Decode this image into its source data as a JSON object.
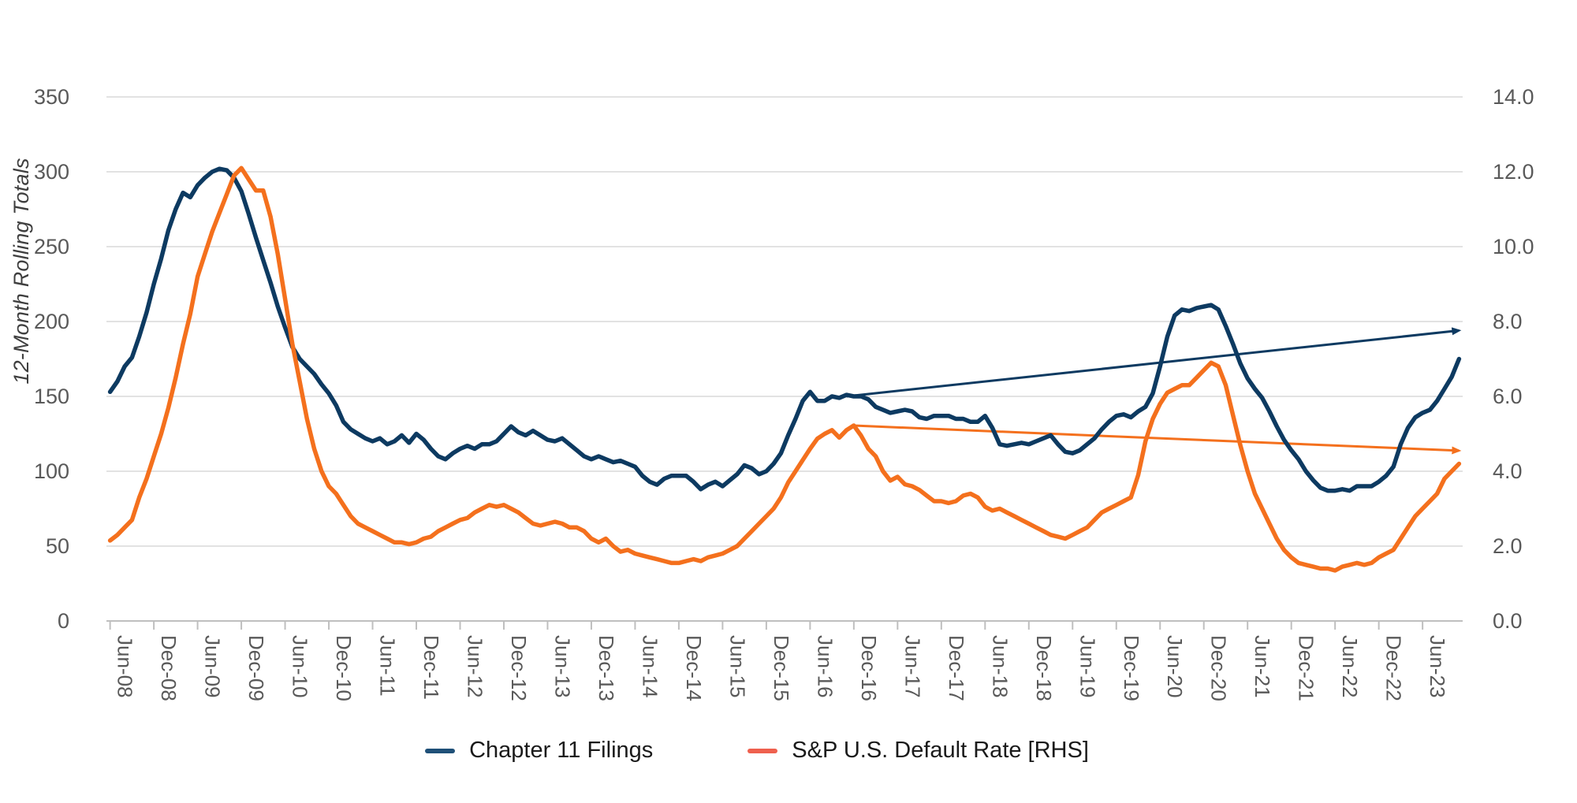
{
  "chart_data": {
    "type": "line",
    "title": "",
    "ylabel_left": "12-Month Rolling Totals",
    "left_axis": {
      "tick_labels": [
        "350",
        "300",
        "250",
        "200",
        "150",
        "100",
        "50",
        "0"
      ],
      "min": 0,
      "max": 350,
      "grid": true
    },
    "right_axis": {
      "tick_labels": [
        "14.0",
        "12.0",
        "10.0",
        "8.0",
        "6.0",
        "4.0",
        "2.0",
        "0.0"
      ],
      "min": 0,
      "max": 14,
      "grid": false
    },
    "x_tick_labels": [
      "Jun-08",
      "Dec-08",
      "Jun-09",
      "Dec-09",
      "Jun-10",
      "Dec-10",
      "Jun-11",
      "Dec-11",
      "Jun-12",
      "Dec-12",
      "Jun-13",
      "Dec-13",
      "Jun-14",
      "Dec-14",
      "Jun-15",
      "Dec-15",
      "Jun-16",
      "Dec-16",
      "Jun-17",
      "Dec-17",
      "Jun-18",
      "Dec-18",
      "Jun-19",
      "Dec-19",
      "Jun-20",
      "Dec-20",
      "Jun-21",
      "Dec-21",
      "Jun-22",
      "Dec-22",
      "Jun-23"
    ],
    "x_start_month": "Jun-08",
    "x_end_month": "Nov-23",
    "months_per_label": 6,
    "series": [
      {
        "name": "Chapter 11 Filings",
        "axis": "left",
        "color": "#0d3a61",
        "values": [
          153,
          160,
          170,
          176,
          190,
          206,
          225,
          242,
          261,
          275,
          286,
          283,
          291,
          296,
          300,
          302,
          301,
          296,
          287,
          272,
          256,
          241,
          226,
          210,
          196,
          183,
          175,
          170,
          165,
          158,
          152,
          144,
          133,
          128,
          125,
          122,
          120,
          122,
          118,
          120,
          124,
          119,
          125,
          121,
          115,
          110,
          108,
          112,
          115,
          117,
          115,
          118,
          118,
          120,
          125,
          130,
          126,
          124,
          127,
          124,
          121,
          120,
          122,
          118,
          114,
          110,
          108,
          110,
          108,
          106,
          107,
          105,
          103,
          97,
          93,
          91,
          95,
          97,
          97,
          97,
          93,
          88,
          91,
          93,
          90,
          94,
          98,
          104,
          102,
          98,
          100,
          105,
          112,
          124,
          135,
          147,
          153,
          147,
          147,
          150,
          149,
          151,
          150,
          150,
          148,
          143,
          141,
          139,
          140,
          141,
          140,
          136,
          135,
          137,
          137,
          137,
          135,
          135,
          133,
          133,
          137,
          129,
          118,
          117,
          118,
          119,
          118,
          120,
          122,
          124,
          118,
          113,
          112,
          114,
          118,
          122,
          128,
          133,
          137,
          138,
          136,
          140,
          143,
          152,
          170,
          190,
          204,
          208,
          207,
          209,
          210,
          211,
          208,
          197,
          185,
          172,
          162,
          155,
          149,
          140,
          130,
          121,
          114,
          108,
          100,
          94,
          89,
          87,
          87,
          88,
          87,
          90,
          90,
          90,
          93,
          97,
          103,
          118,
          129,
          136,
          139,
          141,
          147,
          155,
          163,
          175
        ]
      },
      {
        "name": "S&P U.S. Default Rate [RHS]",
        "axis": "right",
        "color": "#f4701d",
        "values": [
          2.15,
          2.3,
          2.5,
          2.7,
          3.3,
          3.8,
          4.4,
          5.0,
          5.7,
          6.5,
          7.4,
          8.2,
          9.2,
          9.8,
          10.4,
          10.9,
          11.4,
          11.9,
          12.1,
          11.8,
          11.5,
          11.5,
          10.8,
          9.8,
          8.6,
          7.4,
          6.4,
          5.4,
          4.6,
          4.0,
          3.6,
          3.4,
          3.1,
          2.8,
          2.6,
          2.5,
          2.4,
          2.3,
          2.2,
          2.1,
          2.1,
          2.05,
          2.1,
          2.2,
          2.25,
          2.4,
          2.5,
          2.6,
          2.7,
          2.75,
          2.9,
          3.0,
          3.1,
          3.05,
          3.1,
          3.0,
          2.9,
          2.75,
          2.6,
          2.55,
          2.6,
          2.65,
          2.6,
          2.5,
          2.5,
          2.4,
          2.2,
          2.1,
          2.2,
          2.0,
          1.85,
          1.9,
          1.8,
          1.75,
          1.7,
          1.65,
          1.6,
          1.55,
          1.55,
          1.6,
          1.65,
          1.6,
          1.7,
          1.75,
          1.8,
          1.9,
          2.0,
          2.2,
          2.4,
          2.6,
          2.8,
          3.0,
          3.3,
          3.7,
          4.0,
          4.3,
          4.6,
          4.87,
          5.0,
          5.1,
          4.9,
          5.1,
          5.22,
          4.95,
          4.6,
          4.4,
          4.0,
          3.75,
          3.85,
          3.65,
          3.6,
          3.5,
          3.35,
          3.2,
          3.2,
          3.15,
          3.2,
          3.35,
          3.4,
          3.3,
          3.05,
          2.95,
          3.0,
          2.9,
          2.8,
          2.7,
          2.6,
          2.5,
          2.4,
          2.3,
          2.25,
          2.2,
          2.3,
          2.4,
          2.5,
          2.7,
          2.9,
          3.0,
          3.1,
          3.2,
          3.3,
          3.9,
          4.8,
          5.4,
          5.8,
          6.1,
          6.2,
          6.3,
          6.3,
          6.5,
          6.7,
          6.9,
          6.8,
          6.3,
          5.5,
          4.7,
          4.0,
          3.4,
          3.0,
          2.6,
          2.2,
          1.9,
          1.7,
          1.55,
          1.5,
          1.45,
          1.4,
          1.4,
          1.35,
          1.45,
          1.5,
          1.55,
          1.5,
          1.55,
          1.7,
          1.8,
          1.9,
          2.2,
          2.5,
          2.8,
          3.0,
          3.2,
          3.4,
          3.8,
          4.0,
          4.2
        ]
      }
    ],
    "trend_arrows": [
      {
        "series": "Chapter 11 Filings",
        "axis": "left",
        "color": "#0d3a61",
        "start_month_index": 101,
        "start_value": 150,
        "end_month_index": 185,
        "end_value": 194
      },
      {
        "series": "S&P U.S. Default Rate [RHS]",
        "axis": "right",
        "color": "#f4701d",
        "start_month_index": 102,
        "start_value": 5.22,
        "end_month_index": 185,
        "end_value": 4.55
      }
    ],
    "legend": [
      {
        "label": "Chapter 11 Filings",
        "swatch_color": "#1f5078"
      },
      {
        "label": "S&P U.S. Default Rate [RHS]",
        "swatch_color": "#ef604e"
      }
    ],
    "style": {
      "grid_color": "#d8d8d8",
      "axis_color": "#bfbfbf",
      "tick_text_color": "#595959",
      "background": "#ffffff"
    }
  }
}
